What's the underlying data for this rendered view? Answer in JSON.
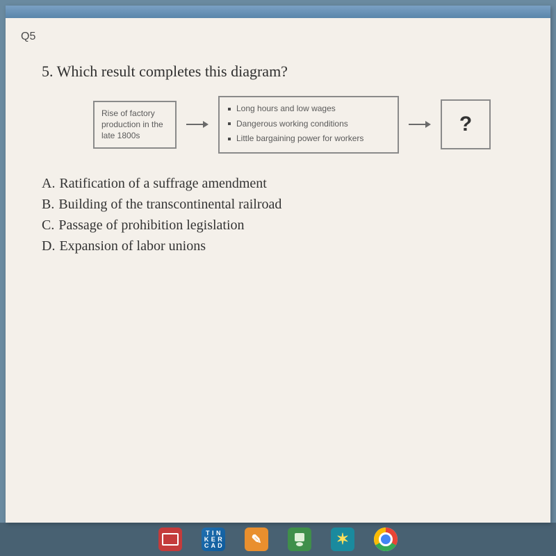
{
  "question_label": "Q5",
  "question": {
    "number": "5.",
    "text": "Which result completes this diagram?"
  },
  "diagram": {
    "type": "flowchart",
    "cause_box": "Rise of factory production in the late 1800s",
    "effects": [
      "Long hours and low wages",
      "Dangerous working conditions",
      "Little bargaining power for workers"
    ],
    "result_placeholder": "?",
    "box_border_color": "#8a8a8a",
    "text_color": "#5a5a5a",
    "arrow_color": "#6a6a6a",
    "cause_fontsize": 12,
    "effects_fontsize": 12,
    "result_fontsize": 30
  },
  "answers": [
    {
      "letter": "A.",
      "text": "Ratification of a suffrage amendment"
    },
    {
      "letter": "B.",
      "text": "Building of the transcontinental railroad"
    },
    {
      "letter": "C.",
      "text": "Passage of prohibition legislation"
    },
    {
      "letter": "D.",
      "text": "Expansion of labor unions"
    }
  ],
  "taskbar": {
    "tinkercad_lines": [
      "T I N",
      "K E R",
      "C A D"
    ],
    "hw_glyph": "✎",
    "spark_glyph": "✶"
  },
  "colors": {
    "page_bg": "#f4f0ea",
    "desktop_bg": "#6a8aa0",
    "topbar_gradient_from": "#7aa0c4",
    "topbar_gradient_to": "#5a86aa",
    "question_text": "#2e2e2e",
    "answer_text": "#333333"
  }
}
